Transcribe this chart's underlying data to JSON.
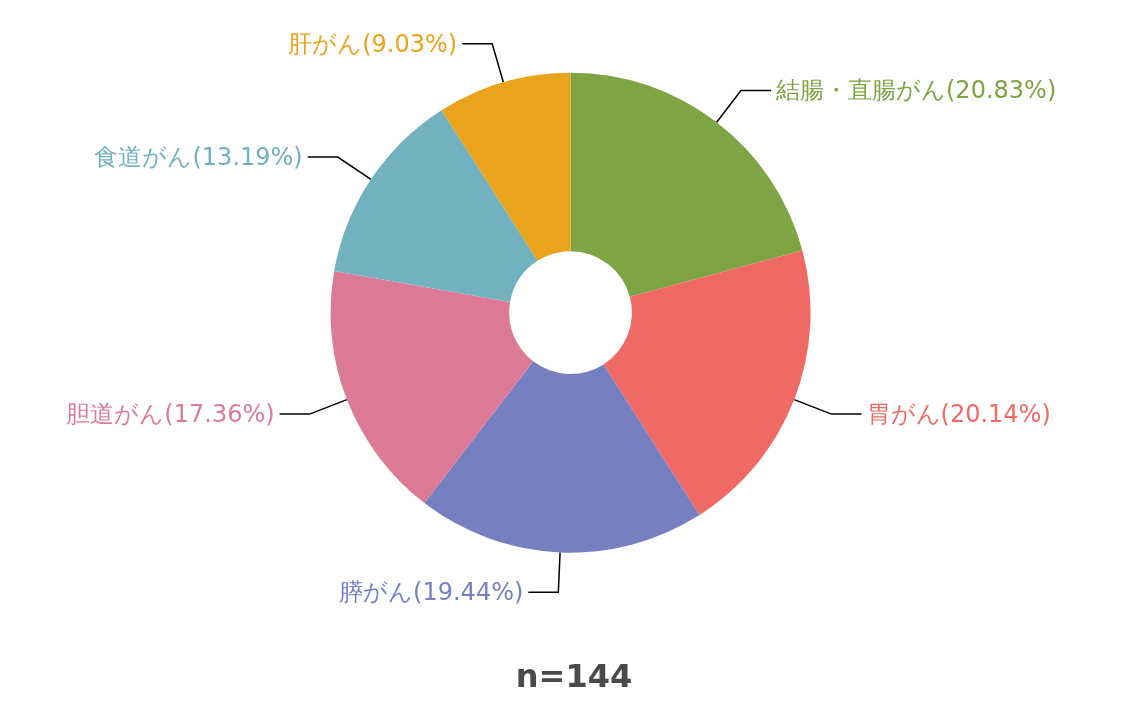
{
  "chart_data": {
    "type": "donut",
    "categories": [
      "結腸・直腸がん(20.83%)",
      "胃がん(20.14%)",
      "膵がん(19.44%)",
      "胆道がん(17.36%)",
      "食道がん(13.19%)",
      "肝がん(9.03%)"
    ],
    "values": [
      20.83,
      20.14,
      19.44,
      17.36,
      13.19,
      9.03
    ],
    "colors": [
      "#7ea443",
      "#ef6a64",
      "#767fc0",
      "#dc7a97",
      "#72b1bf",
      "#e9a31c"
    ],
    "annotations": [
      "n=144"
    ]
  }
}
